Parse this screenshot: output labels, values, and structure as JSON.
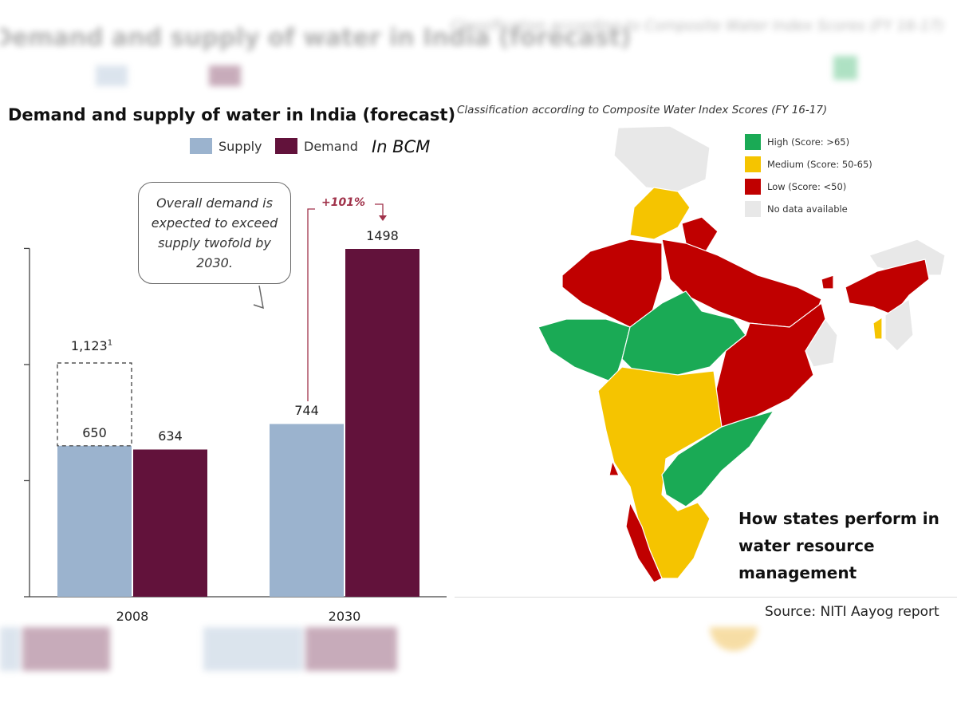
{
  "chart_data": {
    "type": "bar",
    "title": "Demand and supply of water in India (forecast)",
    "unit_label": "In BCM",
    "categories": [
      "2008",
      "2030"
    ],
    "series": [
      {
        "name": "Supply",
        "values": [
          650,
          744
        ],
        "color": "#9bb3ce"
      },
      {
        "name": "Demand",
        "values": [
          634,
          1498
        ],
        "color": "#62123b"
      }
    ],
    "ylim": [
      0,
      1500
    ],
    "annotations": {
      "projected_2008": {
        "value": 1123,
        "label": "1,123",
        "footnote": "1"
      },
      "callout": "Overall demand is expected to exceed supply twofold by 2030.",
      "growth": "+101%"
    }
  },
  "map": {
    "title": "Classification according to Composite Water Index Scores (FY 16-17)",
    "legend": [
      {
        "label": "High (Score: >65)",
        "color": "#1aaa55"
      },
      {
        "label": "Medium (Score: 50-65)",
        "color": "#f5c400"
      },
      {
        "label": "Low (Score: <50)",
        "color": "#c00000"
      },
      {
        "label": "No data available",
        "color": "#e8e8e8"
      }
    ],
    "caption": "How states perform in water resource management",
    "source": "Source: NITI Aayog report"
  }
}
